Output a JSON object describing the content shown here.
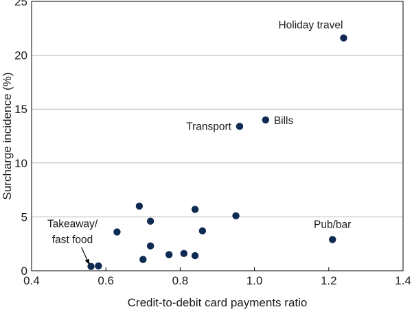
{
  "chart_data": {
    "type": "scatter",
    "xlabel": "Credit-to-debit card payments ratio",
    "ylabel": "Surcharge incidence (%)",
    "xlim": [
      0.4,
      1.4
    ],
    "ylim": [
      0,
      25
    ],
    "xticks": [
      "0.4",
      "0.6",
      "0.8",
      "1.0",
      "1.2",
      "1.4"
    ],
    "yticks": [
      "0",
      "5",
      "10",
      "15",
      "20",
      "25"
    ],
    "grid": "horizontal",
    "marker_color": "#0e2a52",
    "points": [
      {
        "x": 1.24,
        "y": 21.6
      },
      {
        "x": 1.03,
        "y": 14.0
      },
      {
        "x": 0.96,
        "y": 13.4
      },
      {
        "x": 1.21,
        "y": 2.9
      },
      {
        "x": 0.56,
        "y": 0.4
      },
      {
        "x": 0.58,
        "y": 0.45
      },
      {
        "x": 0.63,
        "y": 3.6
      },
      {
        "x": 0.69,
        "y": 6.0
      },
      {
        "x": 0.72,
        "y": 4.6
      },
      {
        "x": 0.72,
        "y": 2.3
      },
      {
        "x": 0.7,
        "y": 1.05
      },
      {
        "x": 0.77,
        "y": 1.5
      },
      {
        "x": 0.81,
        "y": 1.6
      },
      {
        "x": 0.84,
        "y": 1.4
      },
      {
        "x": 0.84,
        "y": 5.7
      },
      {
        "x": 0.86,
        "y": 3.7
      },
      {
        "x": 0.95,
        "y": 5.1
      }
    ],
    "annotations": [
      {
        "text": "Holiday travel",
        "x": 1.24,
        "y": 21.6
      },
      {
        "text": "Bills",
        "x": 1.03,
        "y": 14.0
      },
      {
        "text": "Transport",
        "x": 0.96,
        "y": 13.4
      },
      {
        "text": "Pub/bar",
        "x": 1.21,
        "y": 2.9
      },
      {
        "text": "Takeaway/",
        "x": 0.56,
        "y": 0.4
      },
      {
        "text": "fast food",
        "x": 0.56,
        "y": 0.4
      }
    ]
  }
}
